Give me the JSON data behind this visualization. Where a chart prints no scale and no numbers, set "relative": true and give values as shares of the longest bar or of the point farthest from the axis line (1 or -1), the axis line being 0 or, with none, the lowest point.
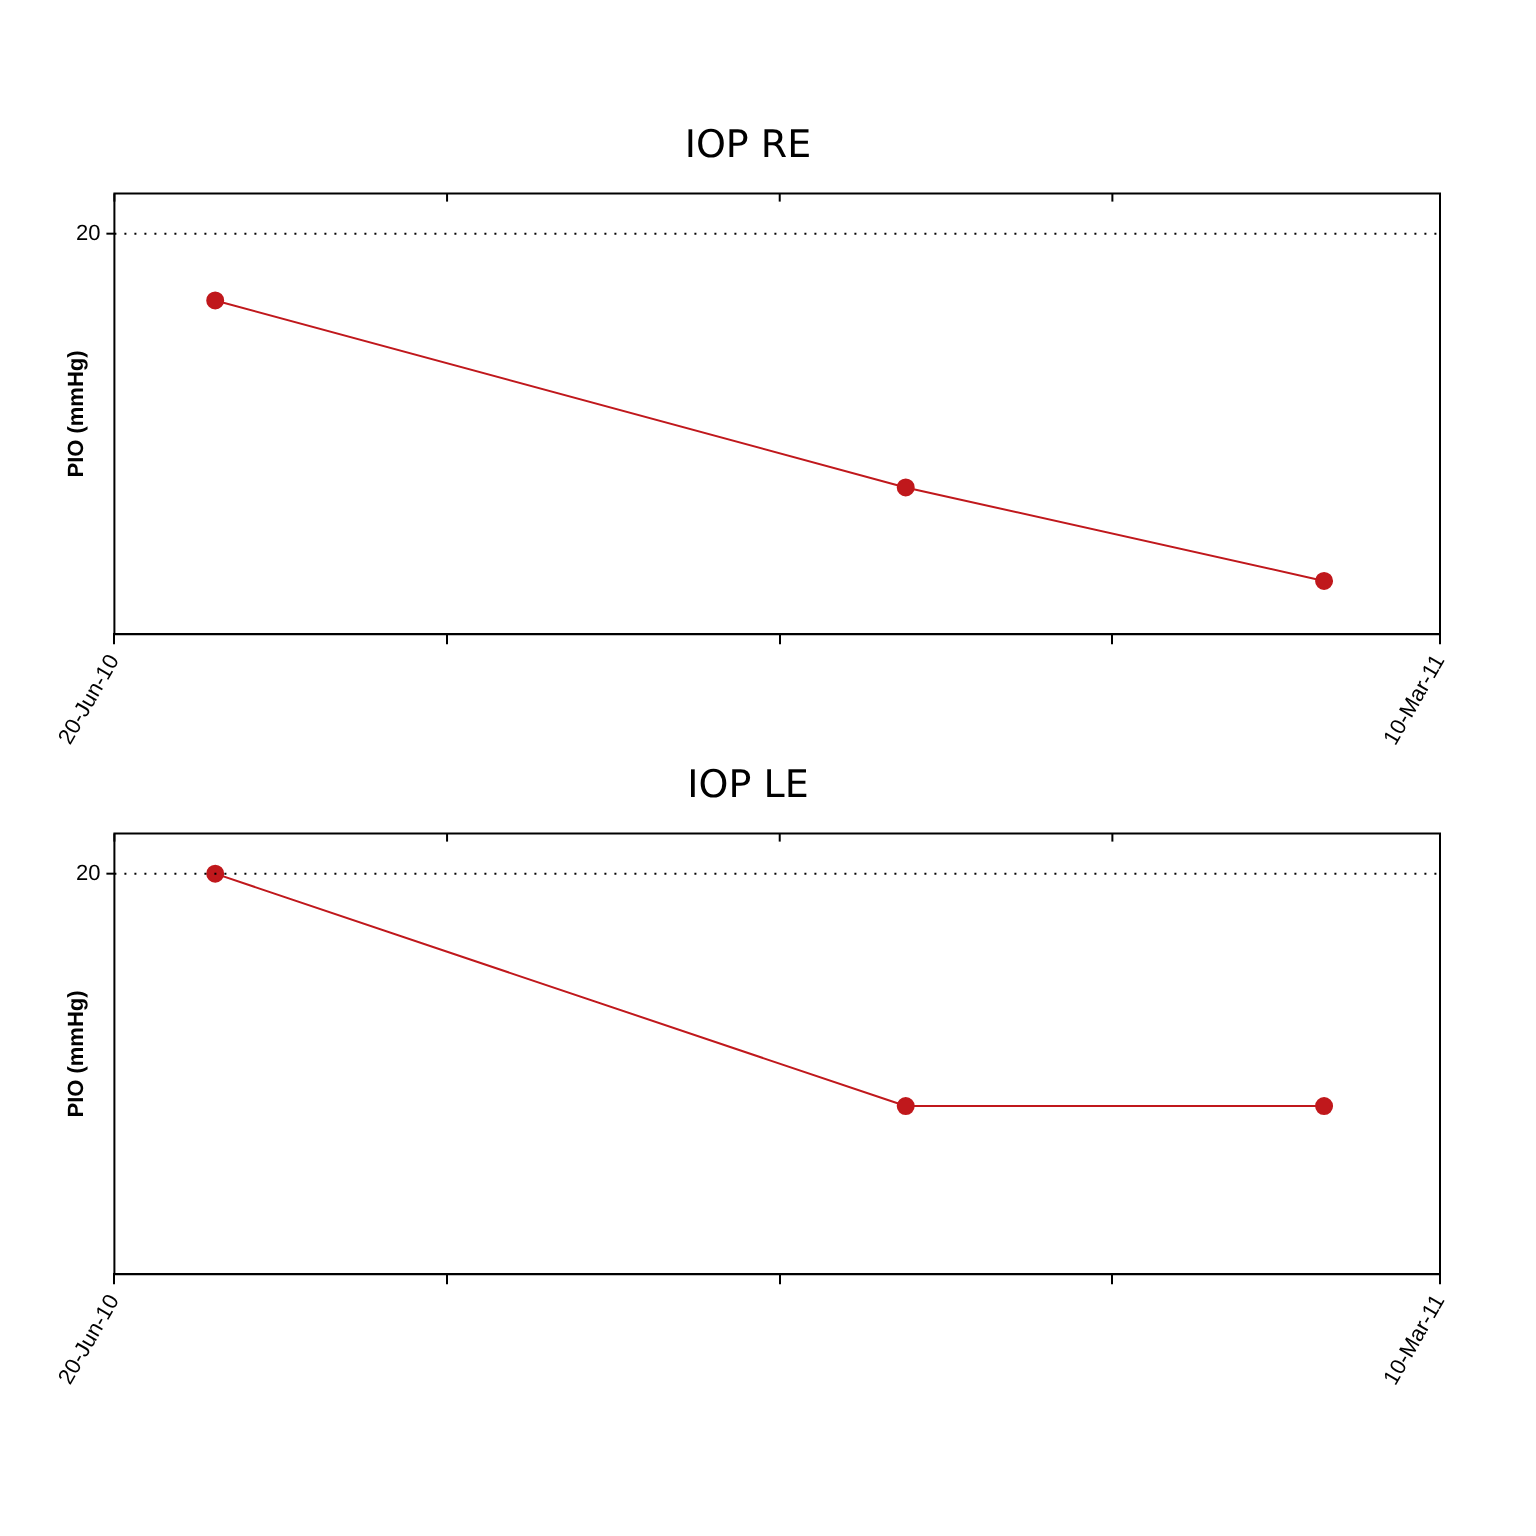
{
  "chart_data": [
    {
      "type": "line",
      "title": "IOP RE",
      "ylabel": "PIO (mmHg)",
      "relative": true,
      "x": [
        "2010-07-10",
        "2010-11-24",
        "2011-02-15"
      ],
      "series": [
        {
          "color": "#c0181c",
          "values": [
            1,
            0.44,
            0.16
          ]
        }
      ],
      "xlim": [
        "2010-06-20",
        "2011-03-10"
      ],
      "xticks": [
        {
          "value": "2010-06-20",
          "label": "20-Jun-10"
        },
        {
          "value": "2010-08-25",
          "label": null
        },
        {
          "value": "2010-10-30",
          "label": null
        },
        {
          "value": "2011-01-04",
          "label": null
        },
        {
          "value": "2011-03-10",
          "label": "10-Mar-11"
        }
      ],
      "ref_lines": [
        {
          "axis": "y",
          "value": 1.2,
          "line_style": "dotted",
          "color": "#000000"
        }
      ],
      "annotations": [
        "20"
      ],
      "marker": "circle",
      "line_style": "solid",
      "grid": false,
      "legend": false
    },
    {
      "type": "line",
      "title": "IOP LE",
      "ylabel": "PIO (mmHg)",
      "relative": true,
      "x": [
        "2010-07-10",
        "2010-11-24",
        "2011-02-15"
      ],
      "series": [
        {
          "color": "#c0181c",
          "values": [
            1,
            0.42,
            0.42
          ]
        }
      ],
      "xlim": [
        "2010-06-20",
        "2011-03-10"
      ],
      "xticks": [
        {
          "value": "2010-06-20",
          "label": "20-Jun-10"
        },
        {
          "value": "2010-08-25",
          "label": null
        },
        {
          "value": "2010-10-30",
          "label": null
        },
        {
          "value": "2011-01-04",
          "label": null
        },
        {
          "value": "2011-03-10",
          "label": "10-Mar-11"
        }
      ],
      "ref_lines": [
        {
          "axis": "y",
          "value": 1.0,
          "line_style": "dotted",
          "color": "#000000"
        }
      ],
      "annotations": [
        "20"
      ],
      "marker": "circle",
      "line_style": "solid",
      "grid": false,
      "legend": false
    }
  ]
}
